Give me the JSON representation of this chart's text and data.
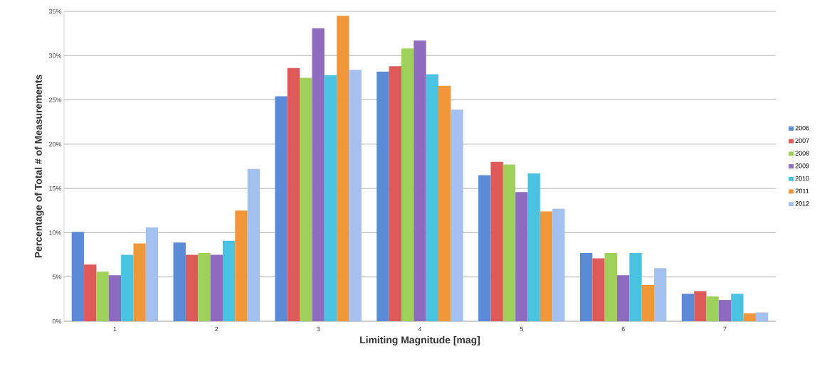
{
  "chart_data": {
    "type": "bar",
    "xlabel": "Limiting Magnitude [mag]",
    "ylabel": "Percentage of Total # of Measurements",
    "categories": [
      "1",
      "2",
      "3",
      "4",
      "5",
      "6",
      "7"
    ],
    "series": [
      {
        "name": "2006",
        "color": "#5b8ad6",
        "values": [
          10.1,
          8.9,
          25.4,
          28.2,
          16.5,
          7.7,
          3.1
        ]
      },
      {
        "name": "2007",
        "color": "#de5a58",
        "values": [
          6.4,
          7.5,
          28.6,
          28.8,
          18.0,
          7.1,
          3.4
        ]
      },
      {
        "name": "2008",
        "color": "#9fd15a",
        "values": [
          5.6,
          7.7,
          27.5,
          30.8,
          17.7,
          7.7,
          2.8
        ]
      },
      {
        "name": "2009",
        "color": "#8f6bc0",
        "values": [
          5.2,
          7.5,
          33.1,
          31.7,
          14.6,
          5.2,
          2.4
        ]
      },
      {
        "name": "2010",
        "color": "#4ac3e3",
        "values": [
          7.5,
          9.1,
          27.8,
          27.9,
          16.7,
          7.7,
          3.1
        ]
      },
      {
        "name": "2011",
        "color": "#f2963a",
        "values": [
          8.8,
          12.5,
          34.5,
          26.6,
          12.4,
          4.1,
          0.9
        ]
      },
      {
        "name": "2012",
        "color": "#a3c0ee",
        "values": [
          10.6,
          17.2,
          28.4,
          23.9,
          12.7,
          6.0,
          1.0
        ]
      }
    ],
    "ylim": [
      0,
      35
    ],
    "yticks": [
      {
        "value": 0,
        "label": "0%"
      },
      {
        "value": 5,
        "label": "5%"
      },
      {
        "value": 10,
        "label": "10%"
      },
      {
        "value": 15,
        "label": "15%"
      },
      {
        "value": 20,
        "label": "20%"
      },
      {
        "value": 25,
        "label": "25%"
      },
      {
        "value": 30,
        "label": "30%"
      },
      {
        "value": 35,
        "label": "35%"
      }
    ],
    "grid": "y",
    "legend": "right"
  }
}
